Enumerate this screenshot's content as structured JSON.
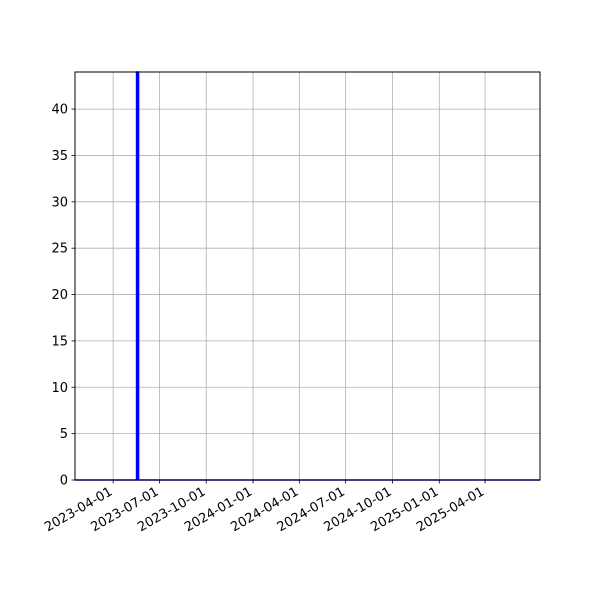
{
  "chart_data": {
    "type": "line",
    "title": "",
    "xlabel": "",
    "ylabel": "",
    "x_axis_kind": "date",
    "xlim": [
      "2023-01-16",
      "2025-07-18"
    ],
    "ylim": [
      0,
      44
    ],
    "x_ticks": [
      "2023-04-01",
      "2023-07-01",
      "2023-10-01",
      "2024-01-01",
      "2024-04-01",
      "2024-07-01",
      "2024-10-01",
      "2025-01-01",
      "2025-04-01"
    ],
    "y_ticks": [
      0,
      5,
      10,
      15,
      20,
      25,
      30,
      35,
      40
    ],
    "grid": true,
    "legend": "none",
    "series": [
      {
        "color": "#0000ff",
        "points": [
          {
            "x": "2023-01-16",
            "y": 0
          },
          {
            "x": "2023-05-17",
            "y": 0
          },
          {
            "x": "2023-05-17",
            "y": 44
          },
          {
            "x": "2023-05-21",
            "y": 44
          },
          {
            "x": "2023-05-21",
            "y": 0
          },
          {
            "x": "2025-07-18",
            "y": 0
          }
        ]
      }
    ]
  }
}
